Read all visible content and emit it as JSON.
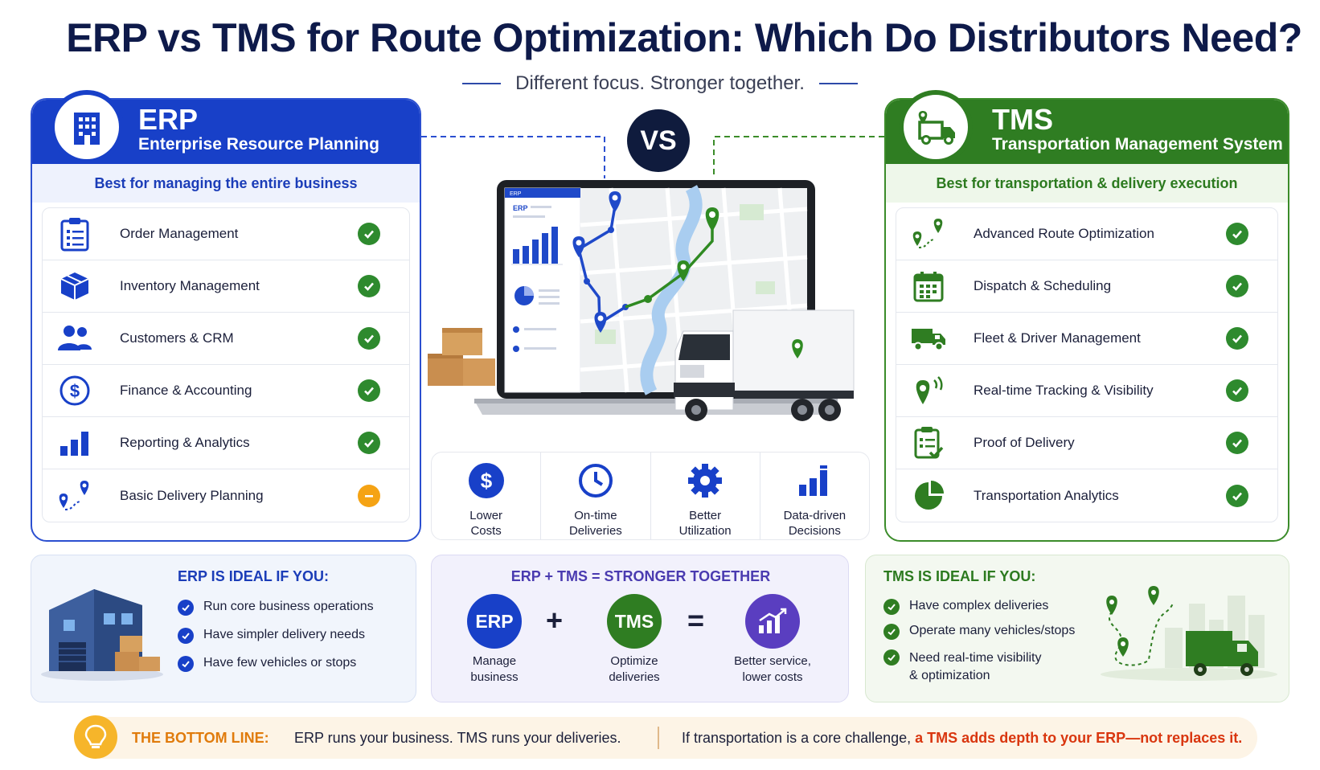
{
  "title": "ERP vs TMS for Route Optimization: Which Do Distributors Need?",
  "subtitle": "Different focus. Stronger together.",
  "vs": "VS",
  "erp": {
    "name": "ERP",
    "full_name": "Enterprise Resource Planning",
    "best_for": "Best for managing the entire business",
    "features": [
      {
        "label": "Order Management",
        "icon": "clipboard-list-icon",
        "status": "check"
      },
      {
        "label": "Inventory Management",
        "icon": "box-icon",
        "status": "check"
      },
      {
        "label": "Customers & CRM",
        "icon": "users-icon",
        "status": "check"
      },
      {
        "label": "Finance & Accounting",
        "icon": "dollar-icon",
        "status": "check"
      },
      {
        "label": "Reporting & Analytics",
        "icon": "bar-chart-icon",
        "status": "check"
      },
      {
        "label": "Basic Delivery Planning",
        "icon": "route-pin-icon",
        "status": "partial"
      }
    ],
    "ideal_title": "ERP IS IDEAL IF YOU:",
    "ideal_items": [
      "Run core business operations",
      "Have simpler delivery needs",
      "Have few vehicles or stops"
    ]
  },
  "tms": {
    "name": "TMS",
    "full_name": "Transportation Management System",
    "best_for": "Best for transportation & delivery execution",
    "features": [
      {
        "label": "Advanced Route Optimization",
        "icon": "route-pin-icon",
        "status": "check"
      },
      {
        "label": "Dispatch & Scheduling",
        "icon": "calendar-icon",
        "status": "check"
      },
      {
        "label": "Fleet & Driver Management",
        "icon": "truck-icon",
        "status": "check"
      },
      {
        "label": "Real-time Tracking & Visibility",
        "icon": "tracking-pin-icon",
        "status": "check"
      },
      {
        "label": "Proof of Delivery",
        "icon": "checklist-icon",
        "status": "check"
      },
      {
        "label": "Transportation Analytics",
        "icon": "pie-chart-icon",
        "status": "check"
      }
    ],
    "ideal_title": "TMS IS IDEAL IF YOU:",
    "ideal_items": [
      "Have complex deliveries",
      "Operate many vehicles/stops",
      "Need real-time visibility\n& optimization"
    ]
  },
  "benefits": [
    {
      "label": "Lower\nCosts",
      "icon": "dollar-icon"
    },
    {
      "label": "On-time\nDeliveries",
      "icon": "clock-icon"
    },
    {
      "label": "Better\nUtilization",
      "icon": "gear-icon"
    },
    {
      "label": "Data-driven\nDecisions",
      "icon": "bar-chart-icon"
    }
  ],
  "together": {
    "title": "ERP + TMS = STRONGER TOGETHER",
    "erp_circle": "ERP",
    "tms_circle": "TMS",
    "plus": "+",
    "equals": "=",
    "erp_label": "Manage\nbusiness",
    "tms_label": "Optimize\ndeliveries",
    "result_label": "Better service,\nlower costs"
  },
  "bottom_line": {
    "label": "THE BOTTOM LINE:",
    "text1": "ERP runs your business. TMS runs your deliveries.",
    "text2": "If transportation is a core challenge, ",
    "text3": "a TMS adds depth to your ERP—not replaces it."
  },
  "laptop_screen": {
    "brand_text": "ERP"
  },
  "colors": {
    "erp_blue": "#1840c8",
    "tms_green": "#2f7d22",
    "accent_orange": "#e07b0c",
    "check_green": "#2e8a2e",
    "partial_orange": "#f5a314"
  }
}
